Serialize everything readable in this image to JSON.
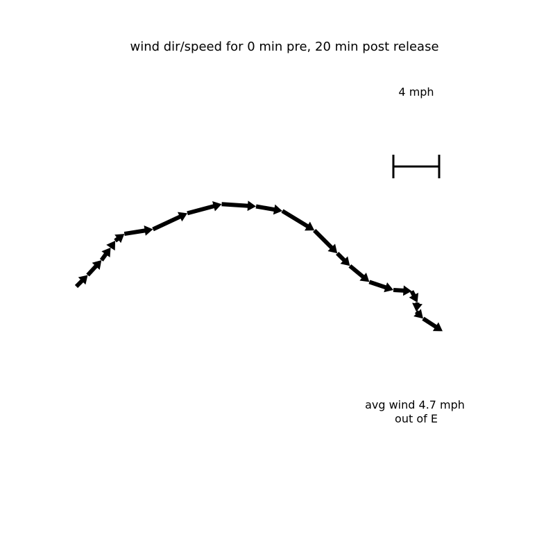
{
  "chart_data": {
    "type": "quiver",
    "title": "wind dir/speed for 0 min pre, 20 min post release",
    "scale_label": "4 mph",
    "scale_value_mph": 4,
    "summary_line1": "avg wind 4.7 mph",
    "summary_line2": "out of E",
    "axes_visible": false,
    "grid": false,
    "series": [
      {
        "vectors": [
          {
            "u": 1.0,
            "v": 1.0
          },
          {
            "u": 1.2,
            "v": 1.3
          },
          {
            "u": 0.8,
            "v": 1.1
          },
          {
            "u": 0.4,
            "v": 0.6
          },
          {
            "u": 0.8,
            "v": 0.6
          },
          {
            "u": 2.5,
            "v": 0.4
          },
          {
            "u": 3.0,
            "v": 1.4
          },
          {
            "u": 3.0,
            "v": 0.8
          },
          {
            "u": 3.0,
            "v": -0.2
          },
          {
            "u": 2.3,
            "v": -0.4
          },
          {
            "u": 2.8,
            "v": -1.7
          },
          {
            "u": 2.0,
            "v": -2.0
          },
          {
            "u": 1.1,
            "v": -1.1
          },
          {
            "u": 1.7,
            "v": -1.4
          },
          {
            "u": 2.1,
            "v": -0.7
          },
          {
            "u": 1.6,
            "v": -0.1
          },
          {
            "u": 0.5,
            "v": -1.0
          },
          {
            "u": -0.1,
            "v": -0.8
          },
          {
            "u": 0.6,
            "v": -0.6
          },
          {
            "u": 1.7,
            "v": -1.1
          }
        ]
      }
    ]
  }
}
